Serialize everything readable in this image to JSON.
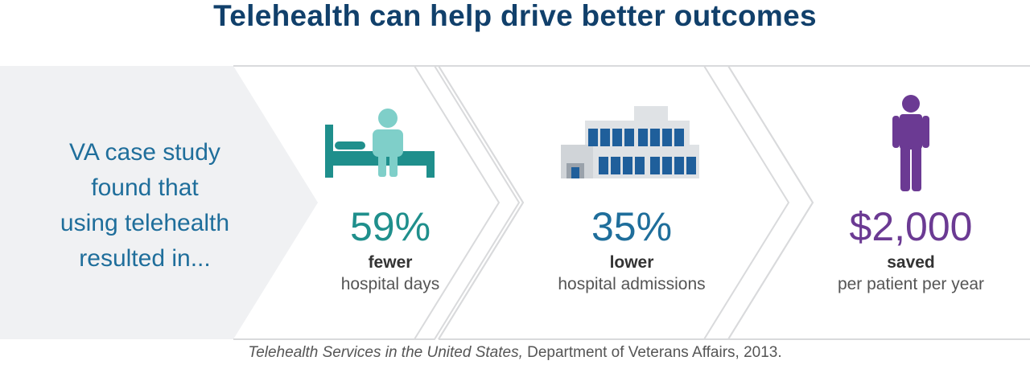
{
  "title": "Telehealth can help drive better outcomes",
  "intro": {
    "line1": "VA case study",
    "line2": "found that",
    "line3": "using telehealth",
    "line4": "resulted in..."
  },
  "stats": [
    {
      "value": "59%",
      "bold": "fewer",
      "desc": "hospital days",
      "color": "#1f8f8c",
      "icon": "patient-bed-icon"
    },
    {
      "value": "35%",
      "bold": "lower",
      "desc": "hospital admissions",
      "color": "#1f6e9b",
      "icon": "hospital-building-icon"
    },
    {
      "value": "$2,000",
      "bold": "saved",
      "desc": "per patient per year",
      "color": "#6b3a93",
      "icon": "person-icon"
    }
  ],
  "source": {
    "italic": "Telehealth Services in the United States,",
    "rest": " Department of Veterans Affairs, 2013."
  },
  "colors": {
    "title": "#11406b",
    "teal": "#1f8f8c",
    "light_teal": "#7fcfc9",
    "blue": "#1f6e9b",
    "purple": "#6b3a93",
    "panel_gray": "#f0f1f3",
    "chevron": "#d9dadc"
  }
}
